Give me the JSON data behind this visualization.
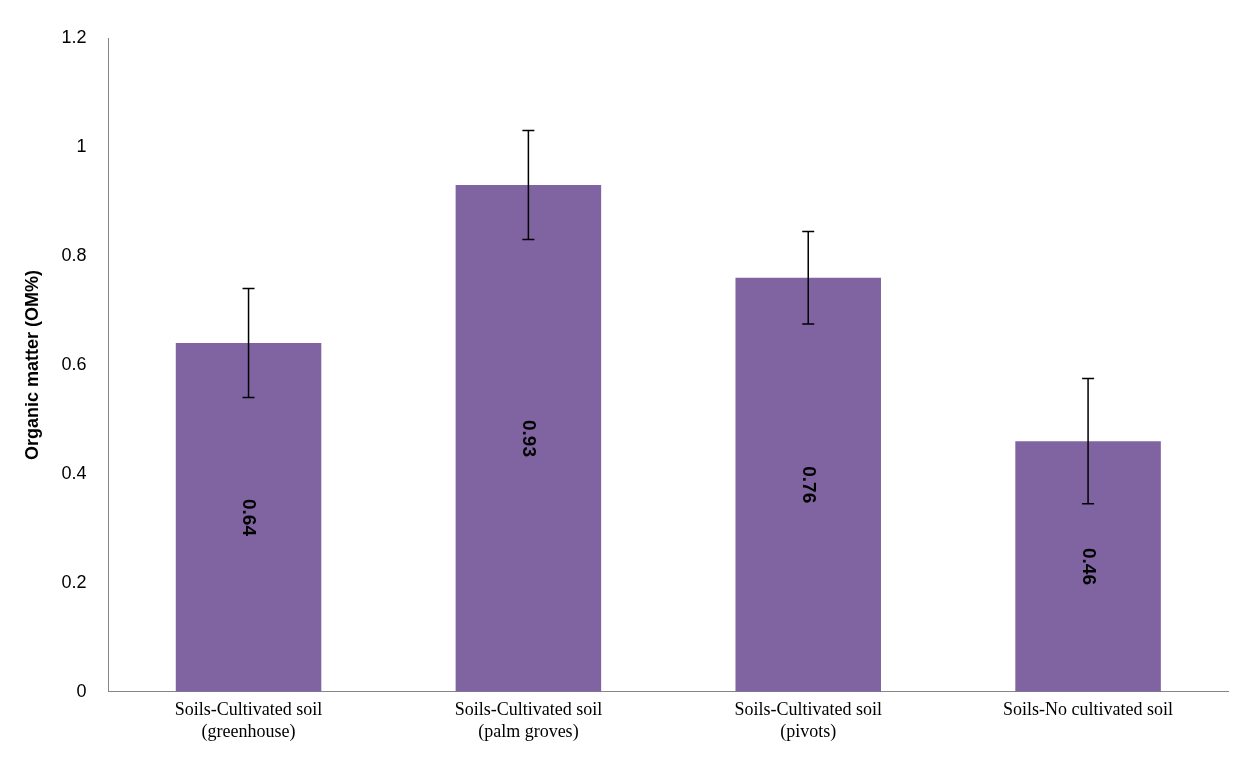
{
  "chart_data": {
    "type": "bar",
    "ylabel": "Organic matter (OM%)",
    "categories": [
      "Soils-Cultivated soil (greenhouse)",
      "Soils-Cultivated soil (palm groves)",
      "Soils-Cultivated soil (pivots)",
      "Soils-No cultivated soil"
    ],
    "values": [
      0.64,
      0.93,
      0.76,
      0.46
    ],
    "errors": [
      0.1,
      0.1,
      0.085,
      0.115
    ],
    "color": "#8064a2",
    "ylim": [
      0,
      1.2
    ],
    "yticks": [
      0,
      0.2,
      0.4,
      0.6,
      0.8,
      1,
      1.2
    ],
    "data_labels": true,
    "grid": false,
    "legend": false
  }
}
